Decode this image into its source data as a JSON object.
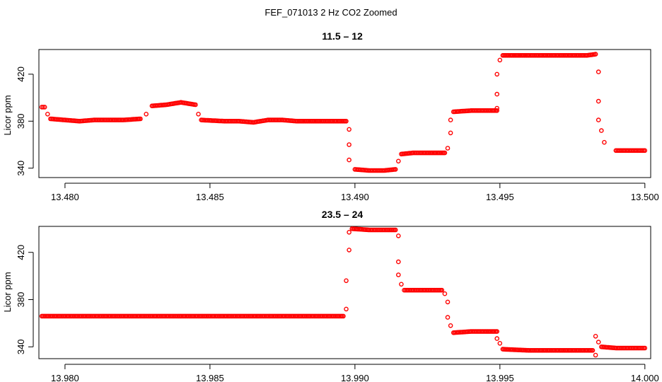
{
  "figure": {
    "title": "FEF_071013  2 Hz CO2 Zoomed"
  },
  "chart_data": [
    {
      "type": "scatter",
      "title": "11.5 – 12",
      "xlabel": "",
      "ylabel": "Licor ppm",
      "xlim": [
        13.4791,
        13.5002
      ],
      "ylim": [
        332,
        441
      ],
      "xticks": [
        13.48,
        13.485,
        13.49,
        13.495,
        13.5
      ],
      "xtick_labels": [
        "13.480",
        "13.485",
        "13.490",
        "13.495",
        "13.500"
      ],
      "yticks": [
        340,
        380,
        420
      ],
      "ytick_labels": [
        "340",
        "380",
        "420"
      ],
      "grid": false,
      "marker": "open-circle",
      "color": "#ff0000",
      "series": [
        {
          "values": [
            [
              13.4792,
              392
            ],
            [
              13.4793,
              392
            ],
            [
              13.4794,
              386
            ],
            [
              13.4795,
              382
            ],
            [
              13.48,
              381
            ],
            [
              13.4805,
              380
            ],
            [
              13.481,
              381
            ],
            [
              13.4815,
              381
            ],
            [
              13.482,
              381
            ],
            [
              13.4826,
              382
            ],
            [
              13.4828,
              386
            ],
            [
              13.483,
              393
            ],
            [
              13.4835,
              394
            ],
            [
              13.484,
              396
            ],
            [
              13.4845,
              394
            ],
            [
              13.4846,
              386
            ],
            [
              13.4847,
              381
            ],
            [
              13.4855,
              380
            ],
            [
              13.486,
              380
            ],
            [
              13.4865,
              379
            ],
            [
              13.487,
              381
            ],
            [
              13.4875,
              381
            ],
            [
              13.488,
              380
            ],
            [
              13.4889,
              380
            ],
            [
              13.4897,
              380
            ],
            [
              13.4898,
              373
            ],
            [
              13.4898,
              360
            ],
            [
              13.4898,
              347
            ],
            [
              13.49,
              339
            ],
            [
              13.4905,
              338
            ],
            [
              13.491,
              338
            ],
            [
              13.4914,
              339
            ],
            [
              13.4915,
              346
            ],
            [
              13.4916,
              352
            ],
            [
              13.492,
              353
            ],
            [
              13.4925,
              353
            ],
            [
              13.4931,
              353
            ],
            [
              13.4932,
              357
            ],
            [
              13.4933,
              370
            ],
            [
              13.4933,
              381
            ],
            [
              13.4934,
              388
            ],
            [
              13.494,
              389
            ],
            [
              13.4945,
              389
            ],
            [
              13.4949,
              389
            ],
            [
              13.4949,
              391
            ],
            [
              13.4949,
              403
            ],
            [
              13.4949,
              420
            ],
            [
              13.495,
              432
            ],
            [
              13.4951,
              436
            ],
            [
              13.496,
              436
            ],
            [
              13.497,
              436
            ],
            [
              13.498,
              436
            ],
            [
              13.4983,
              437
            ],
            [
              13.4984,
              422
            ],
            [
              13.4984,
              397
            ],
            [
              13.4984,
              381
            ],
            [
              13.4985,
              372
            ],
            [
              13.4986,
              362
            ],
            [
              13.499,
              355
            ],
            [
              13.4995,
              355
            ],
            [
              13.5,
              355
            ]
          ]
        }
      ]
    },
    {
      "type": "scatter",
      "title": "23.5 – 24",
      "xlabel": "",
      "ylabel": "Licor ppm",
      "xlim": [
        13.9791,
        14.0002
      ],
      "ylim": [
        330,
        442
      ],
      "xticks": [
        13.98,
        13.985,
        13.99,
        13.995,
        14.0
      ],
      "xtick_labels": [
        "13.980",
        "13.985",
        "13.990",
        "13.995",
        "14.000"
      ],
      "yticks": [
        340,
        380,
        420
      ],
      "ytick_labels": [
        "340",
        "380",
        "420"
      ],
      "grid": false,
      "marker": "open-circle",
      "color": "#ff0000",
      "series": [
        {
          "values": [
            [
              13.9792,
              366
            ],
            [
              13.98,
              366
            ],
            [
              13.981,
              366
            ],
            [
              13.982,
              366
            ],
            [
              13.983,
              366
            ],
            [
              13.984,
              366
            ],
            [
              13.985,
              366
            ],
            [
              13.986,
              366
            ],
            [
              13.987,
              366
            ],
            [
              13.988,
              366
            ],
            [
              13.989,
              366
            ],
            [
              13.9896,
              366
            ],
            [
              13.9897,
              372
            ],
            [
              13.9897,
              396
            ],
            [
              13.9898,
              422
            ],
            [
              13.9898,
              437
            ],
            [
              13.9899,
              440
            ],
            [
              13.9905,
              439
            ],
            [
              13.991,
              439
            ],
            [
              13.9914,
              439
            ],
            [
              13.9915,
              434
            ],
            [
              13.9915,
              412
            ],
            [
              13.9915,
              401
            ],
            [
              13.9916,
              393
            ],
            [
              13.9917,
              388
            ],
            [
              13.992,
              388
            ],
            [
              13.9925,
              388
            ],
            [
              13.993,
              388
            ],
            [
              13.9931,
              385
            ],
            [
              13.9932,
              378
            ],
            [
              13.9932,
              365
            ],
            [
              13.9933,
              358
            ],
            [
              13.9934,
              352
            ],
            [
              13.994,
              353
            ],
            [
              13.9945,
              353
            ],
            [
              13.9949,
              353
            ],
            [
              13.9949,
              347
            ],
            [
              13.995,
              343
            ],
            [
              13.9951,
              338
            ],
            [
              13.996,
              337
            ],
            [
              13.997,
              337
            ],
            [
              13.998,
              337
            ],
            [
              13.9982,
              337
            ],
            [
              13.9983,
              333
            ],
            [
              13.9983,
              349
            ],
            [
              13.9984,
              344
            ],
            [
              13.9985,
              340
            ],
            [
              13.999,
              339
            ],
            [
              13.9995,
              339
            ],
            [
              14.0,
              339
            ]
          ]
        }
      ]
    }
  ]
}
